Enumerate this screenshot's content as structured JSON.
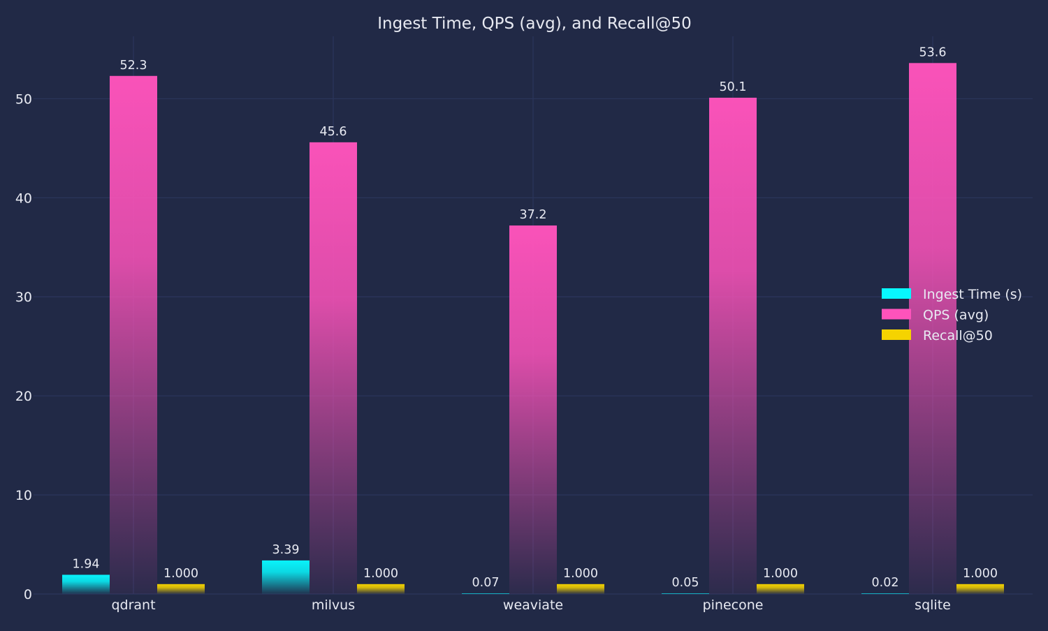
{
  "chart_data": {
    "type": "bar",
    "title": "Ingest Time, QPS (avg), and Recall@50",
    "xlabel": "",
    "ylabel": "",
    "categories": [
      "qdrant",
      "milvus",
      "weaviate",
      "pinecone",
      "sqlite"
    ],
    "series": [
      {
        "name": "Ingest Time (s)",
        "values": [
          1.94,
          3.39,
          0.07,
          0.05,
          0.02
        ],
        "labels": [
          "1.94",
          "3.39",
          "0.07",
          "0.05",
          "0.02"
        ],
        "color": "#08F7FE"
      },
      {
        "name": "QPS (avg)",
        "values": [
          52.3,
          45.6,
          37.2,
          50.1,
          53.6
        ],
        "labels": [
          "52.3",
          "45.6",
          "37.2",
          "50.1",
          "53.6"
        ],
        "color": "#FE53BB"
      },
      {
        "name": "Recall@50",
        "values": [
          1.0,
          1.0,
          1.0,
          1.0,
          1.0
        ],
        "labels": [
          "1.000",
          "1.000",
          "1.000",
          "1.000",
          "1.000"
        ],
        "color": "#F5D300"
      }
    ],
    "ylim": [
      0,
      56.3
    ],
    "yticks": [
      0,
      10,
      20,
      30,
      40,
      50
    ],
    "grid": true,
    "legend_position": "center-right",
    "colors": {
      "background": "#212946",
      "grid": "#2A3459",
      "text": "#E8EAF2"
    }
  }
}
